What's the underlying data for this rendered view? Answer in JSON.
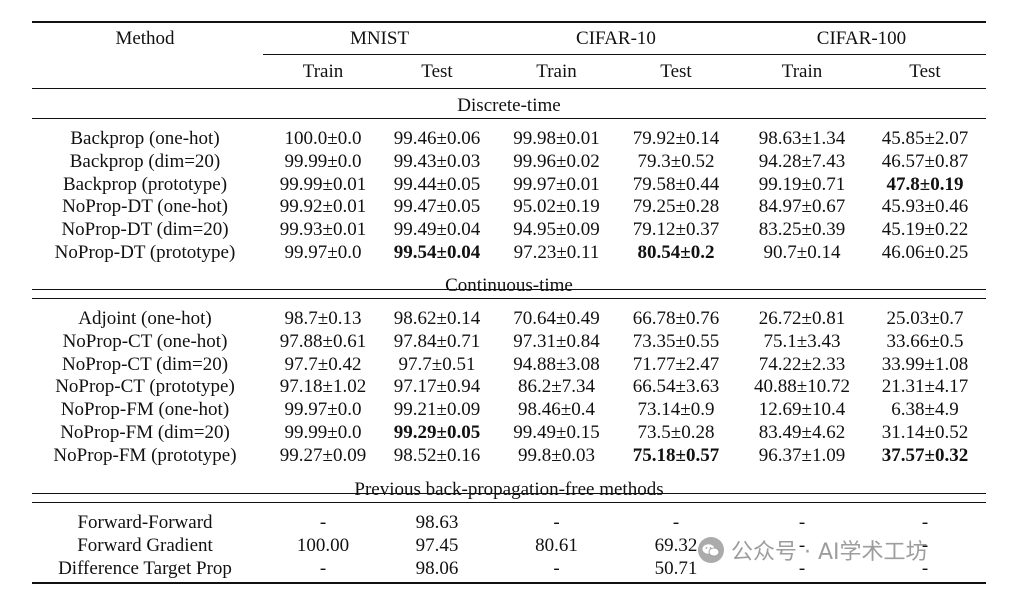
{
  "header": {
    "method": "Method",
    "datasets": [
      "MNIST",
      "CIFAR-10",
      "CIFAR-100"
    ],
    "subheaders": [
      "Train",
      "Test",
      "Train",
      "Test",
      "Train",
      "Test"
    ]
  },
  "sections": [
    {
      "title": "Discrete-time",
      "rows": [
        {
          "method": "Backprop (one-hot)",
          "values": [
            "100.0±0.0",
            "99.46±0.06",
            "99.98±0.01",
            "79.92±0.14",
            "98.63±1.34",
            "45.85±2.07"
          ],
          "bold": [
            false,
            false,
            false,
            false,
            false,
            false
          ]
        },
        {
          "method": "Backprop (dim=20)",
          "values": [
            "99.99±0.0",
            "99.43±0.03",
            "99.96±0.02",
            "79.3±0.52",
            "94.28±7.43",
            "46.57±0.87"
          ],
          "bold": [
            false,
            false,
            false,
            false,
            false,
            false
          ]
        },
        {
          "method": "Backprop (prototype)",
          "values": [
            "99.99±0.01",
            "99.44±0.05",
            "99.97±0.01",
            "79.58±0.44",
            "99.19±0.71",
            "47.8±0.19"
          ],
          "bold": [
            false,
            false,
            false,
            false,
            false,
            true
          ]
        },
        {
          "method": "NoProp-DT (one-hot)",
          "values": [
            "99.92±0.01",
            "99.47±0.05",
            "95.02±0.19",
            "79.25±0.28",
            "84.97±0.67",
            "45.93±0.46"
          ],
          "bold": [
            false,
            false,
            false,
            false,
            false,
            false
          ]
        },
        {
          "method": "NoProp-DT (dim=20)",
          "values": [
            "99.93±0.01",
            "99.49±0.04",
            "94.95±0.09",
            "79.12±0.37",
            "83.25±0.39",
            "45.19±0.22"
          ],
          "bold": [
            false,
            false,
            false,
            false,
            false,
            false
          ]
        },
        {
          "method": "NoProp-DT (prototype)",
          "values": [
            "99.97±0.0",
            "99.54±0.04",
            "97.23±0.11",
            "80.54±0.2",
            "90.7±0.14",
            "46.06±0.25"
          ],
          "bold": [
            false,
            true,
            false,
            true,
            false,
            false
          ]
        }
      ]
    },
    {
      "title": "Continuous-time",
      "rows": [
        {
          "method": "Adjoint (one-hot)",
          "values": [
            "98.7±0.13",
            "98.62±0.14",
            "70.64±0.49",
            "66.78±0.76",
            "26.72±0.81",
            "25.03±0.7"
          ],
          "bold": [
            false,
            false,
            false,
            false,
            false,
            false
          ]
        },
        {
          "method": "NoProp-CT (one-hot)",
          "values": [
            "97.88±0.61",
            "97.84±0.71",
            "97.31±0.84",
            "73.35±0.55",
            "75.1±3.43",
            "33.66±0.5"
          ],
          "bold": [
            false,
            false,
            false,
            false,
            false,
            false
          ]
        },
        {
          "method": "NoProp-CT (dim=20)",
          "values": [
            "97.7±0.42",
            "97.7±0.51",
            "94.88±3.08",
            "71.77±2.47",
            "74.22±2.33",
            "33.99±1.08"
          ],
          "bold": [
            false,
            false,
            false,
            false,
            false,
            false
          ]
        },
        {
          "method": "NoProp-CT (prototype)",
          "values": [
            "97.18±1.02",
            "97.17±0.94",
            "86.2±7.34",
            "66.54±3.63",
            "40.88±10.72",
            "21.31±4.17"
          ],
          "bold": [
            false,
            false,
            false,
            false,
            false,
            false
          ]
        },
        {
          "method": "NoProp-FM (one-hot)",
          "values": [
            "99.97±0.0",
            "99.21±0.09",
            "98.46±0.4",
            "73.14±0.9",
            "12.69±10.4",
            "6.38±4.9"
          ],
          "bold": [
            false,
            false,
            false,
            false,
            false,
            false
          ]
        },
        {
          "method": "NoProp-FM (dim=20)",
          "values": [
            "99.99±0.0",
            "99.29±0.05",
            "99.49±0.15",
            "73.5±0.28",
            "83.49±4.62",
            "31.14±0.52"
          ],
          "bold": [
            false,
            true,
            false,
            false,
            false,
            false
          ]
        },
        {
          "method": "NoProp-FM (prototype)",
          "values": [
            "99.27±0.09",
            "98.52±0.16",
            "99.8±0.03",
            "75.18±0.57",
            "96.37±1.09",
            "37.57±0.32"
          ],
          "bold": [
            false,
            false,
            false,
            true,
            false,
            true
          ]
        }
      ]
    },
    {
      "title": "Previous back-propagation-free methods",
      "rows": [
        {
          "method": "Forward-Forward",
          "values": [
            "-",
            "98.63",
            "-",
            "-",
            "-",
            "-"
          ],
          "bold": [
            false,
            false,
            false,
            false,
            false,
            false
          ]
        },
        {
          "method": "Forward Gradient",
          "values": [
            "100.00",
            "97.45",
            "80.61",
            "69.32",
            "-",
            "-"
          ],
          "bold": [
            false,
            false,
            false,
            false,
            false,
            false
          ]
        },
        {
          "method": "Difference Target Prop",
          "values": [
            "-",
            "98.06",
            "-",
            "50.71",
            "-",
            "-"
          ],
          "bold": [
            false,
            false,
            false,
            false,
            false,
            false
          ]
        }
      ]
    }
  ],
  "watermark": {
    "text": "公众号 · AI学术工坊",
    "icon": "wechat-icon"
  }
}
